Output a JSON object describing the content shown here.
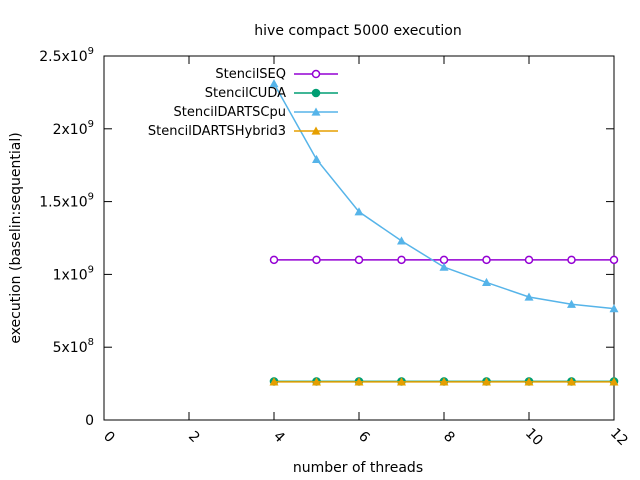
{
  "chart_data": {
    "type": "line",
    "title": "hive compact 5000 execution",
    "xlabel": "number of threads",
    "ylabel": "execution (baselin:sequential)",
    "xlim": [
      0,
      12
    ],
    "ylim": [
      0,
      2500000000
    ],
    "x_ticks": [
      "0",
      "2",
      "4",
      "6",
      "8",
      "10",
      "12"
    ],
    "x_tick_values": [
      0,
      2,
      4,
      6,
      8,
      10,
      12
    ],
    "y_ticks": [
      {
        "value": 0,
        "base": "0",
        "exp": ""
      },
      {
        "value": 500000000,
        "base": "5x10",
        "exp": "8"
      },
      {
        "value": 1000000000,
        "base": "1x10",
        "exp": "9"
      },
      {
        "value": 1500000000,
        "base": "1.5x10",
        "exp": "9"
      },
      {
        "value": 2000000000,
        "base": "2x10",
        "exp": "9"
      },
      {
        "value": 2500000000,
        "base": "2.5x10",
        "exp": "9"
      }
    ],
    "legend_position": "top-left",
    "x": [
      4,
      5,
      6,
      7,
      8,
      9,
      10,
      11,
      12
    ],
    "series": [
      {
        "name": "StencilSEQ",
        "color": "#9400d3",
        "marker": "circle-open",
        "values": [
          1100000000,
          1100000000,
          1100000000,
          1100000000,
          1100000000,
          1100000000,
          1100000000,
          1100000000,
          1100000000
        ]
      },
      {
        "name": "StencilCUDA",
        "color": "#009e73",
        "marker": "circle-filled",
        "values": [
          265000000,
          265000000,
          265000000,
          265000000,
          265000000,
          265000000,
          265000000,
          265000000,
          265000000
        ]
      },
      {
        "name": "StencilDARTSCpu",
        "color": "#56b4e9",
        "marker": "triangle-filled",
        "values": [
          2310000000,
          1790000000,
          1430000000,
          1230000000,
          1050000000,
          945000000,
          845000000,
          795000000,
          765000000
        ]
      },
      {
        "name": "StencilDARTSHybrid3",
        "color": "#e69f00",
        "marker": "triangle-filled",
        "values": [
          262000000,
          262000000,
          262000000,
          262000000,
          262000000,
          262000000,
          262000000,
          262000000,
          262000000
        ]
      }
    ]
  }
}
